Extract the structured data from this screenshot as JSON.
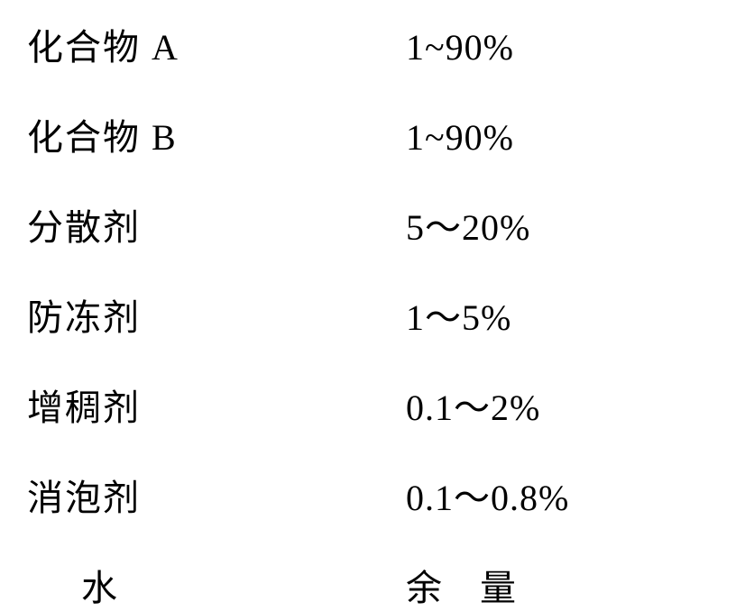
{
  "rows": [
    {
      "label": "化合物 A",
      "value": "1~90%",
      "label_class": "",
      "value_class": ""
    },
    {
      "label": "化合物 B",
      "value": "1~90%",
      "label_class": "",
      "value_class": ""
    },
    {
      "label": "分散剂",
      "value": "5～20%",
      "label_class": "",
      "value_class": ""
    },
    {
      "label": "防冻剂",
      "value": "1～5%",
      "label_class": "",
      "value_class": ""
    },
    {
      "label": "增稠剂",
      "value": "0.1～2%",
      "label_class": "",
      "value_class": ""
    },
    {
      "label": "消泡剂",
      "value": "0.1～0.8%",
      "label_class": "",
      "value_class": ""
    },
    {
      "label": "水",
      "value": "余 量",
      "label_class": "water-label",
      "value_class": "water-value"
    }
  ],
  "style": {
    "background_color": "#ffffff",
    "text_color": "#000000",
    "font_size": 40,
    "font_family": "SimSun, 宋体, Times New Roman, serif",
    "row_spacing": 42,
    "label_width": 420
  }
}
